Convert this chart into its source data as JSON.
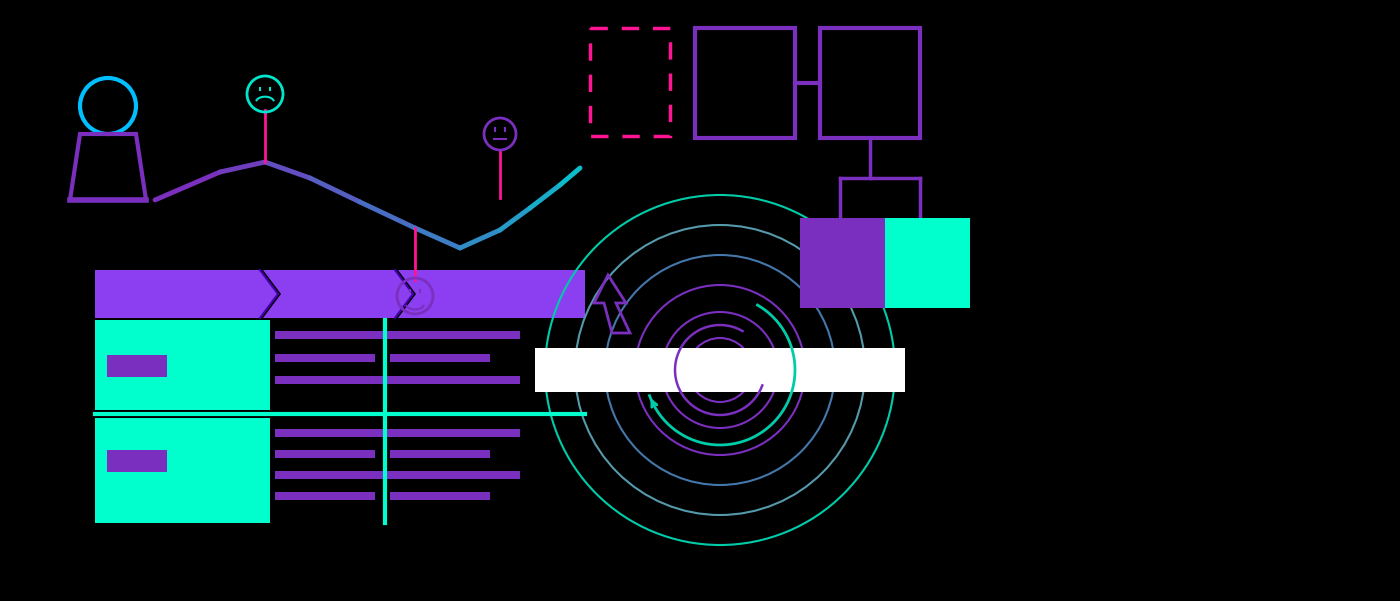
{
  "bg_color": "#000000",
  "person_outline_color": "#00BFFF",
  "person_body_color": "#7B2FBE",
  "line_color_purple": "#7B2FBE",
  "line_color_cyan": "#00E5CC",
  "pin_color": "#FF1493",
  "face_happy_color": "#00E5CC",
  "face_sad_color": "#7B2FBE",
  "face_neutral_color": "#7B2FBE",
  "dotted_box_color": "#FF1493",
  "outline_box_color": "#7B2FBE",
  "filled_box_purple": "#7B2FBE",
  "filled_box_cyan": "#00FFCC",
  "chevron_color": "#8B3FF0",
  "chevron_sep_color": "#5500AA",
  "table_row_color": "#00FFCC",
  "table_bar_color": "#7B2FBE",
  "table_sep_color": "#00FFCC",
  "target_outer_color": "#00CCAA",
  "target_mid_color": "#7B2FBE",
  "target_inner_color": "#7B2FBE",
  "target_arrow_color": "#00CCAA",
  "cursor_color": "#7B2FBE"
}
